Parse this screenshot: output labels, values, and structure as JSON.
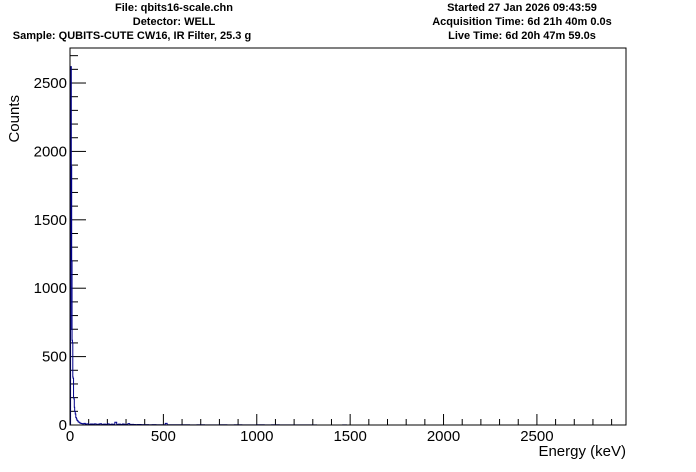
{
  "header": {
    "file": "File: qbits16-scale.chn",
    "detector": "Detector: WELL",
    "sample": "Sample: QUBITS-CUTE CW16, IR Filter, 25.3 g",
    "started": "Started 27 Jan 2026 09:43:59",
    "acquisition_time": "Acquisition Time: 6d 21h 40m 0.0s",
    "live_time": "Live Time: 6d 20h 47m 59.0s"
  },
  "chart_data": {
    "type": "line",
    "style": "histogram-step",
    "title": "",
    "xlabel": "Energy (keV)",
    "ylabel": "Counts",
    "xlim": [
      0,
      2977
    ],
    "ylim": [
      0,
      2756
    ],
    "x_ticks": [
      "0",
      "500",
      "1000",
      "1500",
      "2000",
      "2500"
    ],
    "y_ticks": [
      "0",
      "500",
      "1000",
      "1500",
      "2000",
      "2500"
    ],
    "grid": false,
    "line_color": "#00008b",
    "series": [
      {
        "points": [
          [
            0,
            0
          ],
          [
            3,
            700
          ],
          [
            5,
            2620
          ],
          [
            7,
            1890
          ],
          [
            9,
            1200
          ],
          [
            11,
            620
          ],
          [
            13,
            600
          ],
          [
            15,
            350
          ],
          [
            17,
            340
          ],
          [
            19,
            200
          ],
          [
            21,
            190
          ],
          [
            23,
            130
          ],
          [
            25,
            100
          ],
          [
            28,
            80
          ],
          [
            31,
            55
          ],
          [
            34,
            45
          ],
          [
            37,
            35
          ],
          [
            40,
            30
          ],
          [
            44,
            22
          ],
          [
            48,
            20
          ],
          [
            52,
            15
          ],
          [
            57,
            12
          ],
          [
            62,
            10
          ],
          [
            68,
            8
          ],
          [
            75,
            12
          ],
          [
            82,
            6
          ],
          [
            90,
            8
          ],
          [
            100,
            5
          ],
          [
            110,
            7
          ],
          [
            120,
            6
          ],
          [
            130,
            8
          ],
          [
            140,
            5
          ],
          [
            150,
            6
          ],
          [
            160,
            9
          ],
          [
            170,
            4
          ],
          [
            180,
            6
          ],
          [
            190,
            5
          ],
          [
            200,
            8
          ],
          [
            210,
            4
          ],
          [
            220,
            6
          ],
          [
            230,
            5
          ],
          [
            240,
            20
          ],
          [
            250,
            5
          ],
          [
            260,
            6
          ],
          [
            270,
            4
          ],
          [
            280,
            7
          ],
          [
            290,
            5
          ],
          [
            300,
            4
          ],
          [
            310,
            10
          ],
          [
            320,
            4
          ],
          [
            330,
            5
          ],
          [
            340,
            4
          ],
          [
            350,
            3
          ],
          [
            360,
            4
          ],
          [
            380,
            3
          ],
          [
            400,
            3
          ],
          [
            420,
            2
          ],
          [
            440,
            3
          ],
          [
            460,
            2
          ],
          [
            480,
            2
          ],
          [
            500,
            2
          ],
          [
            510,
            12
          ],
          [
            520,
            2
          ],
          [
            560,
            2
          ],
          [
            600,
            2
          ],
          [
            640,
            1
          ],
          [
            680,
            2
          ],
          [
            720,
            1
          ],
          [
            760,
            1
          ],
          [
            800,
            2
          ],
          [
            840,
            1
          ],
          [
            880,
            2
          ],
          [
            920,
            1
          ],
          [
            960,
            1
          ],
          [
            1000,
            2
          ],
          [
            1040,
            1
          ],
          [
            1080,
            2
          ],
          [
            1120,
            1
          ],
          [
            1160,
            1
          ],
          [
            1200,
            1
          ],
          [
            1240,
            1
          ],
          [
            1280,
            1
          ],
          [
            1320,
            0
          ],
          [
            1460,
            1
          ],
          [
            1480,
            0
          ],
          [
            2977,
            0
          ]
        ]
      }
    ]
  }
}
